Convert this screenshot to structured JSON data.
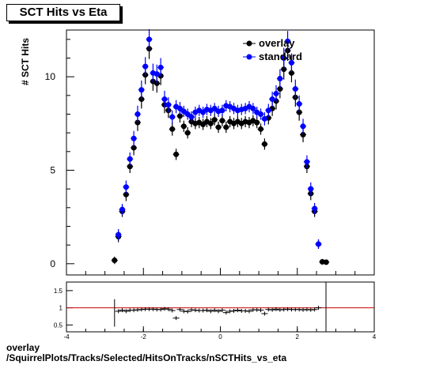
{
  "chart_data": [
    {
      "type": "scatter",
      "title": "SCT Hits vs Eta",
      "ylabel": "# SCT Hits",
      "xlim": [
        -4,
        4
      ],
      "ylim": [
        -0.6,
        12.5
      ],
      "yticks": [
        "0",
        "5",
        "10"
      ],
      "legend_placement": "top-right",
      "series": [
        {
          "name": "overlay",
          "color": "#000000",
          "x": [
            -2.75,
            -2.65,
            -2.55,
            -2.45,
            -2.35,
            -2.25,
            -2.15,
            -2.05,
            -1.95,
            -1.85,
            -1.75,
            -1.65,
            -1.55,
            -1.45,
            -1.35,
            -1.25,
            -1.15,
            -1.05,
            -0.95,
            -0.85,
            -0.75,
            -0.65,
            -0.55,
            -0.45,
            -0.35,
            -0.25,
            -0.15,
            -0.05,
            0.05,
            0.15,
            0.25,
            0.35,
            0.45,
            0.55,
            0.65,
            0.75,
            0.85,
            0.95,
            1.05,
            1.15,
            1.25,
            1.35,
            1.45,
            1.55,
            1.65,
            1.75,
            1.85,
            1.95,
            2.05,
            2.15,
            2.25,
            2.35,
            2.45,
            2.55,
            2.65,
            2.75
          ],
          "y": [
            0.18,
            1.45,
            2.8,
            3.7,
            5.2,
            6.2,
            7.55,
            8.8,
            10.1,
            11.5,
            9.75,
            9.65,
            10.05,
            8.5,
            8.2,
            7.2,
            5.85,
            7.9,
            7.35,
            7.0,
            7.6,
            7.5,
            7.55,
            7.45,
            7.6,
            7.5,
            7.7,
            7.3,
            7.65,
            7.3,
            7.6,
            7.5,
            7.6,
            7.5,
            7.6,
            7.55,
            7.65,
            7.55,
            7.2,
            6.4,
            7.8,
            8.3,
            8.7,
            9.35,
            10.4,
            11.4,
            10.2,
            8.9,
            8.1,
            6.9,
            5.2,
            3.75,
            2.8,
            1.05,
            0.1,
            0.08
          ],
          "yerr": [
            0.2,
            0.3,
            0.3,
            0.35,
            0.35,
            0.4,
            0.45,
            0.5,
            0.5,
            0.55,
            0.5,
            0.5,
            0.5,
            0.45,
            0.4,
            0.35,
            0.3,
            0.35,
            0.3,
            0.3,
            0.3,
            0.3,
            0.3,
            0.3,
            0.3,
            0.3,
            0.3,
            0.3,
            0.3,
            0.3,
            0.3,
            0.3,
            0.3,
            0.3,
            0.3,
            0.3,
            0.3,
            0.3,
            0.3,
            0.3,
            0.35,
            0.4,
            0.45,
            0.5,
            0.55,
            0.55,
            0.5,
            0.5,
            0.45,
            0.4,
            0.35,
            0.35,
            0.3,
            0.25,
            0.15,
            0.1
          ]
        },
        {
          "name": "standard",
          "color": "#0000ff",
          "x": [
            -2.65,
            -2.55,
            -2.45,
            -2.35,
            -2.25,
            -2.15,
            -2.05,
            -1.95,
            -1.85,
            -1.75,
            -1.65,
            -1.55,
            -1.45,
            -1.35,
            -1.25,
            -1.15,
            -1.05,
            -0.95,
            -0.85,
            -0.75,
            -0.65,
            -0.55,
            -0.45,
            -0.35,
            -0.25,
            -0.15,
            -0.05,
            0.05,
            0.15,
            0.25,
            0.35,
            0.45,
            0.55,
            0.65,
            0.75,
            0.85,
            0.95,
            1.05,
            1.15,
            1.25,
            1.35,
            1.45,
            1.55,
            1.65,
            1.75,
            1.85,
            1.95,
            2.05,
            2.15,
            2.25,
            2.35,
            2.45,
            2.55
          ],
          "y": [
            1.55,
            2.9,
            4.1,
            5.6,
            6.7,
            8.0,
            9.3,
            10.55,
            12.0,
            10.2,
            10.15,
            10.5,
            8.8,
            8.5,
            7.85,
            8.4,
            8.3,
            8.15,
            8.0,
            7.85,
            8.1,
            8.2,
            8.1,
            8.25,
            8.2,
            8.3,
            8.15,
            8.2,
            8.45,
            8.4,
            8.3,
            8.2,
            8.25,
            8.3,
            8.4,
            8.3,
            8.1,
            8.0,
            7.75,
            8.2,
            8.8,
            9.1,
            9.9,
            11.0,
            11.9,
            10.75,
            9.35,
            8.55,
            7.35,
            5.45,
            4.0,
            2.95,
            1.05
          ],
          "yerr": [
            0.3,
            0.3,
            0.35,
            0.35,
            0.4,
            0.45,
            0.5,
            0.5,
            0.55,
            0.5,
            0.5,
            0.5,
            0.45,
            0.4,
            0.35,
            0.35,
            0.35,
            0.3,
            0.3,
            0.3,
            0.3,
            0.3,
            0.3,
            0.3,
            0.3,
            0.3,
            0.3,
            0.3,
            0.3,
            0.3,
            0.3,
            0.3,
            0.3,
            0.3,
            0.3,
            0.3,
            0.3,
            0.3,
            0.35,
            0.35,
            0.4,
            0.45,
            0.5,
            0.55,
            0.55,
            0.5,
            0.5,
            0.45,
            0.4,
            0.35,
            0.35,
            0.3,
            0.25
          ]
        }
      ]
    },
    {
      "type": "scatter",
      "xlim": [
        -4,
        4
      ],
      "ylim": [
        0.3,
        1.75
      ],
      "xticks": [
        "-4",
        "-2",
        "0",
        "2",
        "4"
      ],
      "yticks": [
        "0.5",
        "1",
        "1.5"
      ],
      "reference_line": 1,
      "reference_color": "#cc0000",
      "ratio": [
        0.9,
        0.93,
        0.9,
        0.93,
        0.93,
        0.94,
        0.95,
        0.96,
        0.96,
        0.96,
        0.95,
        0.95,
        0.97,
        0.96,
        0.92,
        0.7,
        0.95,
        0.9,
        0.89,
        0.94,
        0.93,
        0.92,
        0.92,
        0.93,
        0.9,
        0.93,
        0.9,
        0.93,
        0.86,
        0.9,
        0.91,
        0.93,
        0.91,
        0.91,
        0.9,
        0.94,
        0.94,
        0.93,
        0.83,
        0.95,
        0.94,
        0.96,
        0.94,
        0.95,
        0.96,
        0.95,
        0.95,
        0.95,
        0.94,
        0.95,
        0.94,
        0.95,
        1.0
      ]
    }
  ],
  "footer": {
    "line1": "overlay",
    "line2": "/SquirrelPlots/Tracks/Selected/HitsOnTracks/nSCTHits_vs_eta"
  }
}
